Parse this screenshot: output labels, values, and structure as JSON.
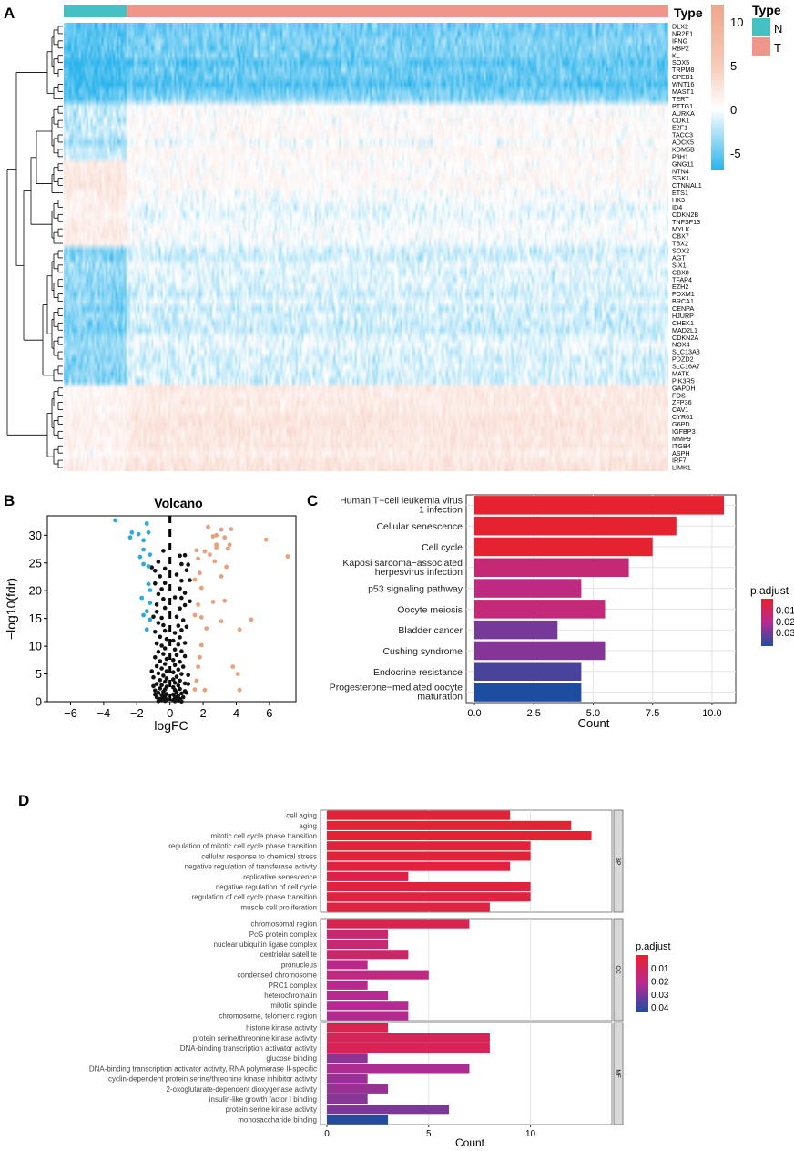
{
  "panels": {
    "a": "A",
    "b": "B",
    "c": "C",
    "d": "D"
  },
  "colors": {
    "high": "#f0a58c",
    "mid": "#ffffff",
    "low": "#29b3ec",
    "normal": "#45c1c4",
    "tumor": "#f0958a",
    "volcano_up": "#e9a07c",
    "volcano_down": "#2ea9de",
    "volcano_ns": "#111111",
    "padj_low": "#e8222b",
    "padj_mid": "#b72a91",
    "padj_high": "#1e4da0",
    "panel_grid": "#e3e3e3"
  },
  "chart_data": [
    {
      "panel": "A",
      "type": "heatmap",
      "annotation_title": "Type",
      "legend_title": "Type",
      "groups": [
        {
          "label": "N",
          "samples": 33
        },
        {
          "label": "T",
          "samples": 285
        }
      ],
      "color_scale": {
        "ticks": [
          "10",
          "5",
          "0",
          "-5"
        ],
        "values": [
          10,
          5,
          0,
          -5
        ],
        "min": -7,
        "max": 12
      },
      "genes": [
        "DLX2",
        "NR2E1",
        "IFNG",
        "RBP2",
        "KL",
        "SOX5",
        "TRPM8",
        "CPEB1",
        "WNT16",
        "MAST1",
        "TERT",
        "PTTG1",
        "AURKA",
        "CDK1",
        "E2F1",
        "TACC3",
        "ADCK5",
        "KDM5B",
        "P3H1",
        "GNG11",
        "NTN4",
        "SGK1",
        "CTNNAL1",
        "ETS1",
        "HK3",
        "ID4",
        "CDKN2B",
        "TNFSF13",
        "MYLK",
        "CBX7",
        "TBX2",
        "SOX2",
        "AGT",
        "SIX1",
        "CBX8",
        "TFAP4",
        "EZH2",
        "FOXM1",
        "BRCA1",
        "CENPA",
        "HJURP",
        "CHEK1",
        "MAD2L1",
        "CDKN2A",
        "NOX4",
        "SLC13A3",
        "PDZD2",
        "SLC16A7",
        "MATK",
        "PIK3R5",
        "GAPDH",
        "FOS",
        "ZFP36",
        "CAV1",
        "CYR61",
        "G6PD",
        "IGFBP3",
        "MMP9",
        "ITGB4",
        "ASPH",
        "IRF7",
        "LIMK1"
      ],
      "clusters": [
        {
          "genes": 11,
          "normal": -5,
          "tumor": -4
        },
        {
          "genes": 8,
          "normal": -1.8,
          "tumor": 0.4
        },
        {
          "genes": 5,
          "normal": 2.4,
          "tumor": 0.6
        },
        {
          "genes": 7,
          "normal": 2.0,
          "tumor": 0
        },
        {
          "genes": 19,
          "normal": -3.2,
          "tumor": -1.0
        },
        {
          "genes": 12,
          "normal": 1.4,
          "tumor": 2.6
        }
      ]
    },
    {
      "panel": "B",
      "type": "scatter",
      "title": "Volcano",
      "xlabel": "logFC",
      "ylabel": "−log10(fdr)",
      "xlim": [
        -7.4,
        7.6
      ],
      "ylim": [
        0,
        33.5
      ],
      "xticks": [
        -6,
        -4,
        -2,
        0,
        2,
        4,
        6
      ],
      "xtick_labels": [
        "−6",
        "−4",
        "−2",
        "0",
        "2",
        "4",
        "6"
      ],
      "yticks": [
        0,
        5,
        10,
        15,
        20,
        25,
        30
      ],
      "threshold_x": 0,
      "up": [
        [
          2.3,
          31.5
        ],
        [
          2.8,
          30
        ],
        [
          3.1,
          31
        ],
        [
          3.7,
          31.1
        ],
        [
          2.6,
          29.8
        ],
        [
          3.3,
          29.6
        ],
        [
          2.8,
          28.3
        ],
        [
          3.6,
          28.3
        ],
        [
          5.8,
          29.2
        ],
        [
          7.1,
          26.2
        ],
        [
          1.6,
          27.3
        ],
        [
          2.1,
          27.1
        ],
        [
          2.8,
          27.8
        ],
        [
          3.5,
          27.6
        ],
        [
          2.4,
          26.5
        ],
        [
          1.7,
          25.8
        ],
        [
          2.7,
          25.3
        ],
        [
          3.4,
          24.3
        ],
        [
          1.8,
          23.2
        ],
        [
          1.5,
          22
        ],
        [
          3.1,
          22.6
        ],
        [
          1.9,
          20.5
        ],
        [
          3.3,
          18.2
        ],
        [
          1.7,
          17.5
        ],
        [
          2.6,
          18
        ],
        [
          1.5,
          15.6
        ],
        [
          1.9,
          15.2
        ],
        [
          3.1,
          14.5
        ],
        [
          4.9,
          14.8
        ],
        [
          2.2,
          13.2
        ],
        [
          4.2,
          13
        ],
        [
          1.9,
          10.2
        ],
        [
          1.8,
          8
        ],
        [
          1.7,
          6.3
        ],
        [
          3.8,
          6.3
        ],
        [
          4.1,
          5
        ],
        [
          1.6,
          3.8
        ],
        [
          1.5,
          2.2
        ],
        [
          2.1,
          2.1
        ],
        [
          4.2,
          2.1
        ]
      ],
      "down": [
        [
          -3.3,
          32.7
        ],
        [
          -1.4,
          32.1
        ],
        [
          -2.3,
          30.5
        ],
        [
          -1.9,
          30.2
        ],
        [
          -1.3,
          30.5
        ],
        [
          -1.6,
          29.1
        ],
        [
          -2.4,
          29.6
        ],
        [
          -1.6,
          27.4
        ],
        [
          -1.2,
          26.5
        ],
        [
          -1.8,
          26.1
        ],
        [
          -1.3,
          24.4
        ],
        [
          -1.6,
          24.8
        ],
        [
          -1.3,
          21.2
        ],
        [
          -1.2,
          20.1
        ],
        [
          -1.7,
          18.7
        ],
        [
          -1.2,
          17.8
        ],
        [
          -1.4,
          16.3
        ],
        [
          -1.6,
          15.6
        ],
        [
          -1.2,
          14.8
        ],
        [
          -1.4,
          13
        ]
      ],
      "ns": [
        [
          -0.4,
          27.2
        ],
        [
          -0.7,
          25.2
        ],
        [
          -1.1,
          24.2
        ],
        [
          -0.3,
          24
        ],
        [
          0.6,
          26.3
        ],
        [
          0.9,
          26.4
        ],
        [
          0.7,
          24.8
        ],
        [
          1.1,
          24.7
        ],
        [
          1,
          23.7
        ],
        [
          -0.9,
          23.6
        ],
        [
          -0.6,
          22.6
        ],
        [
          -0.3,
          21.4
        ],
        [
          0.4,
          22.9
        ],
        [
          0.7,
          21.8
        ],
        [
          1.2,
          21.9
        ],
        [
          -0.9,
          21.3
        ],
        [
          -0.5,
          20.3
        ],
        [
          0.6,
          20.4
        ],
        [
          0.9,
          19.6
        ],
        [
          -0.7,
          19.4
        ],
        [
          -0.4,
          18.5
        ],
        [
          0.3,
          18.8
        ],
        [
          0.7,
          18.7
        ],
        [
          1.2,
          18.1
        ],
        [
          0.9,
          17.4
        ],
        [
          -0.8,
          17.5
        ],
        [
          -0.3,
          16.9
        ],
        [
          0.6,
          16.8
        ],
        [
          -0.8,
          16.2
        ],
        [
          -1,
          15.3
        ],
        [
          -0.5,
          15.1
        ],
        [
          0.4,
          15.3
        ],
        [
          0.8,
          14.7
        ],
        [
          -0.7,
          14.2
        ],
        [
          -0.4,
          13.8
        ],
        [
          0.5,
          13.7
        ],
        [
          1,
          13.5
        ],
        [
          -0.3,
          12.8
        ],
        [
          0.3,
          12.4
        ],
        [
          -0.9,
          12.6
        ],
        [
          0.7,
          12.9
        ],
        [
          -0.6,
          11.7
        ],
        [
          0.6,
          11.6
        ],
        [
          -0.2,
          11.3
        ],
        [
          0.2,
          11
        ],
        [
          -0.8,
          10.5
        ],
        [
          -0.5,
          10.1
        ],
        [
          0.5,
          10.3
        ],
        [
          0.9,
          10.6
        ],
        [
          -0.3,
          9.6
        ],
        [
          0.3,
          9.4
        ],
        [
          -0.7,
          9
        ],
        [
          0.7,
          9.1
        ],
        [
          -0.4,
          8.6
        ],
        [
          0.4,
          8.4
        ],
        [
          0.9,
          8.2
        ],
        [
          -0.9,
          8
        ],
        [
          -0.2,
          7.7
        ],
        [
          0.2,
          7.5
        ],
        [
          -0.6,
          7.3
        ],
        [
          0.6,
          7.2
        ],
        [
          -0.3,
          6.8
        ],
        [
          0.3,
          6.6
        ],
        [
          -0.8,
          6.4
        ],
        [
          0.8,
          6.3
        ],
        [
          -0.5,
          6
        ],
        [
          0.5,
          5.8
        ],
        [
          -0.2,
          5.5
        ],
        [
          0.2,
          5.3
        ],
        [
          -0.7,
          5.1
        ],
        [
          0.7,
          5
        ],
        [
          1.1,
          4.8
        ],
        [
          -0.4,
          4.7
        ],
        [
          0.4,
          4.5
        ],
        [
          -1,
          4.4
        ],
        [
          -0.2,
          4.2
        ],
        [
          0.2,
          4
        ],
        [
          -0.6,
          3.9
        ],
        [
          0.6,
          3.8
        ],
        [
          -0.3,
          3.6
        ],
        [
          0.3,
          3.4
        ],
        [
          0.9,
          3.3
        ],
        [
          -0.8,
          3.2
        ],
        [
          -0.5,
          3
        ],
        [
          0.5,
          2.9
        ],
        [
          -0.2,
          2.7
        ],
        [
          0.2,
          2.6
        ],
        [
          -0.6,
          2.4
        ],
        [
          0.6,
          2.3
        ],
        [
          -0.3,
          2.2
        ],
        [
          0.3,
          2.1
        ],
        [
          -0.9,
          2
        ],
        [
          0.9,
          1.9
        ],
        [
          -0.4,
          1.8
        ],
        [
          0.4,
          1.7
        ],
        [
          -0.7,
          1.6
        ],
        [
          0.7,
          1.5
        ],
        [
          -0.2,
          1.4
        ],
        [
          0.2,
          1.3
        ],
        [
          -0.5,
          1.2
        ],
        [
          0.5,
          1.1
        ],
        [
          -0.3,
          1
        ],
        [
          0.3,
          0.9
        ],
        [
          -0.8,
          0.8
        ],
        [
          0.8,
          0.8
        ],
        [
          -0.4,
          0.7
        ],
        [
          0.4,
          0.6
        ],
        [
          -0.6,
          0.5
        ],
        [
          0.6,
          0.5
        ],
        [
          -0.2,
          0.4
        ],
        [
          0.2,
          0.3
        ],
        [
          -0.5,
          0.25
        ],
        [
          0.5,
          0.2
        ],
        [
          -0.3,
          0.15
        ],
        [
          0.3,
          0.1
        ],
        [
          -0.7,
          0.1
        ],
        [
          0.7,
          0.05
        ],
        [
          -0.9,
          1.3
        ],
        [
          1,
          1.6
        ],
        [
          -1,
          2.8
        ],
        [
          1.1,
          3.2
        ],
        [
          -1.1,
          5.5
        ]
      ]
    },
    {
      "panel": "C",
      "type": "bar",
      "orientation": "horizontal",
      "categories": [
        "Human T−cell leukemia virus 1 infection",
        "Cellular senescence",
        "Cell cycle",
        "Kaposi sarcoma−associated herpesvirus infection",
        "p53 signaling pathway",
        "Oocyte meiosis",
        "Bladder cancer",
        "Cushing syndrome",
        "Endocrine resistance",
        "Progesterone−mediated oocyte maturation"
      ],
      "category_lines": [
        [
          "Human T−cell leukemia virus",
          "1 infection"
        ],
        [
          "Cellular senescence"
        ],
        [
          "Cell cycle"
        ],
        [
          "Kaposi sarcoma−associated",
          "herpesvirus infection"
        ],
        [
          "p53 signaling pathway"
        ],
        [
          "Oocyte meiosis"
        ],
        [
          "Bladder cancer"
        ],
        [
          "Cushing syndrome"
        ],
        [
          "Endocrine resistance"
        ],
        [
          "Progesterone−mediated oocyte",
          "maturation"
        ]
      ],
      "values": [
        10.5,
        8.5,
        7.5,
        6.5,
        4.5,
        5.5,
        3.5,
        5.5,
        4.5,
        4.5
      ],
      "padj": [
        0.001,
        0.001,
        0.001,
        0.015,
        0.018,
        0.016,
        0.03,
        0.028,
        0.036,
        0.042
      ],
      "xlabel": "Count",
      "xlim": [
        0,
        11
      ],
      "xticks": [
        0,
        2.5,
        5,
        7.5,
        10
      ],
      "xtick_labels": [
        "0.0",
        "2.5",
        "5.0",
        "7.5",
        "10.0"
      ],
      "legend": {
        "title": "p.adjust",
        "ticks": [
          "0.01",
          "0.02",
          "0.03"
        ],
        "values": [
          0.01,
          0.02,
          0.03
        ],
        "min": 0,
        "max": 0.042
      }
    },
    {
      "panel": "D",
      "type": "bar",
      "orientation": "horizontal",
      "xlabel": "Count",
      "xlim": [
        0,
        14
      ],
      "xticks": [
        0,
        5,
        10
      ],
      "xtick_labels": [
        "0",
        "5",
        "10"
      ],
      "legend": {
        "title": "p.adjust",
        "ticks": [
          "0.01",
          "0.02",
          "0.03",
          "0.04"
        ],
        "values": [
          0.01,
          0.02,
          0.03,
          0.04
        ],
        "min": 0,
        "max": 0.043
      },
      "facets": [
        {
          "label": "BP",
          "categories": [
            "cell aging",
            "aging",
            "mitotic cell cycle phase transition",
            "regulation of mitotic cell cycle phase transition",
            "cellular response to chemical stress",
            "negative regulation of transferase activity",
            "replicative senescence",
            "negative regulation of cell cycle",
            "regulation of cell cycle phase transition",
            "muscle cell proliferation"
          ],
          "values": [
            9,
            12,
            13,
            10,
            10,
            9,
            4,
            10,
            10,
            8
          ],
          "padj": [
            0.003,
            0.002,
            0.002,
            0.003,
            0.003,
            0.004,
            0.006,
            0.004,
            0.004,
            0.005
          ]
        },
        {
          "label": "CC",
          "categories": [
            "chromosomal region",
            "PcG protein complex",
            "nuclear ubiquitin ligase complex",
            "centriolar satellite",
            "pronucleus",
            "condensed chromosome",
            "PRC1 complex",
            "heterochromatin",
            "mitotic spindle",
            "chromosome, telomeric region"
          ],
          "values": [
            7,
            3,
            3,
            4,
            2,
            5,
            2,
            3,
            4,
            4
          ],
          "padj": [
            0.008,
            0.014,
            0.015,
            0.013,
            0.02,
            0.018,
            0.02,
            0.021,
            0.021,
            0.022
          ]
        },
        {
          "label": "MF",
          "categories": [
            "histone kinase activity",
            "protein serine/threonine kinase activity",
            "DNA-binding transcription activator activity",
            "glucose binding",
            "DNA-binding transcription activator activity, RNA polymerase II-specific",
            "cyclin-dependent protein serine/threonine kinase inhibitor activity",
            "2-oxoglutarate-dependent dioxygenase activity",
            "insulin-like growth factor I binding",
            "protein serine kinase activity",
            "monosaccharide binding"
          ],
          "values": [
            3,
            8,
            8,
            2,
            7,
            2,
            3,
            2,
            6,
            3
          ],
          "padj": [
            0.008,
            0.009,
            0.009,
            0.027,
            0.023,
            0.026,
            0.026,
            0.028,
            0.03,
            0.042
          ]
        }
      ]
    }
  ]
}
